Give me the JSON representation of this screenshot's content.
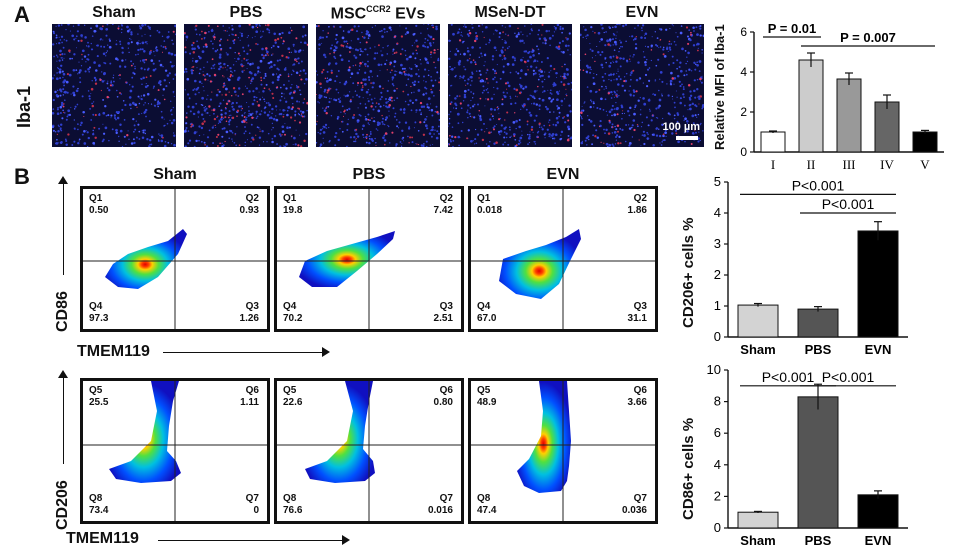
{
  "panel_a": {
    "letter": "A",
    "row_label": "Iba-1",
    "scale_bar": "100 µm",
    "groups": [
      {
        "base": "Sham",
        "sup": "",
        "rest": ""
      },
      {
        "base": "PBS",
        "sup": "",
        "rest": ""
      },
      {
        "base": "MSC",
        "sup": "CCR2",
        "rest": " EVs"
      },
      {
        "base": "MSeN-DT",
        "sup": "",
        "rest": ""
      },
      {
        "base": "EVN",
        "sup": "",
        "rest": ""
      }
    ]
  },
  "panel_b": {
    "letter": "B",
    "columns": [
      "Sham",
      "PBS",
      "EVN"
    ],
    "x_axis": "TMEM119",
    "row1_y_axis": "CD86",
    "row2_y_axis": "CD206",
    "row1": [
      {
        "q1": "Q1",
        "v1": "0.50",
        "q2": "Q2",
        "v2": "0.93",
        "q3": "Q3",
        "v3": "1.26",
        "q4": "Q4",
        "v4": "97.3"
      },
      {
        "q1": "Q1",
        "v1": "19.8",
        "q2": "Q2",
        "v2": "7.42",
        "q3": "Q3",
        "v3": "2.51",
        "q4": "Q4",
        "v4": "70.2"
      },
      {
        "q1": "Q1",
        "v1": "0.018",
        "q2": "Q2",
        "v2": "1.86",
        "q3": "Q3",
        "v3": "31.1",
        "q4": "Q4",
        "v4": "67.0"
      }
    ],
    "row2": [
      {
        "q1": "Q5",
        "v1": "25.5",
        "q2": "Q6",
        "v2": "1.11",
        "q3": "Q7",
        "v3": "0",
        "q4": "Q8",
        "v4": "73.4"
      },
      {
        "q1": "Q5",
        "v1": "22.6",
        "q2": "Q6",
        "v2": "0.80",
        "q3": "Q7",
        "v3": "0.016",
        "q4": "Q8",
        "v4": "76.6"
      },
      {
        "q1": "Q5",
        "v1": "48.9",
        "q2": "Q6",
        "v2": "3.66",
        "q3": "Q7",
        "v3": "0.036",
        "q4": "Q8",
        "v4": "47.4"
      }
    ]
  },
  "chart_data": [
    {
      "id": "iba1",
      "type": "bar",
      "ylabel": "Relative MFI of Iba-1",
      "categories": [
        "I",
        "II",
        "III",
        "IV",
        "V"
      ],
      "values": [
        1.0,
        4.6,
        3.65,
        2.5,
        1.0
      ],
      "errors": [
        0.05,
        0.35,
        0.3,
        0.35,
        0.08
      ],
      "colors": [
        "#ffffff",
        "#cccccc",
        "#999999",
        "#666666",
        "#000000"
      ],
      "ylim": [
        0,
        6
      ],
      "yticks": [
        "0",
        "2",
        "4",
        "6"
      ],
      "annotations": [
        {
          "text": "P = 0.01",
          "from": 0,
          "to": 1,
          "level": 5.75
        },
        {
          "text": "P = 0.007",
          "from": 1,
          "to": 4,
          "level": 5.3
        }
      ]
    },
    {
      "id": "cd206",
      "type": "bar",
      "ylabel": "CD206+ cells %",
      "categories": [
        "Sham",
        "PBS",
        "EVN"
      ],
      "values": [
        1.03,
        0.9,
        3.42
      ],
      "errors": [
        0.05,
        0.08,
        0.3
      ],
      "colors": [
        "#d3d3d3",
        "#555555",
        "#000000"
      ],
      "ylim": [
        0,
        5
      ],
      "yticks": [
        "0",
        "1",
        "2",
        "3",
        "4",
        "5"
      ],
      "annotations": [
        {
          "text": "P<0.001",
          "from": 0,
          "to": 2,
          "level": 4.6
        },
        {
          "text": "P<0.001",
          "from": 1,
          "to": 2,
          "level": 4.0
        }
      ]
    },
    {
      "id": "cd86",
      "type": "bar",
      "ylabel": "CD86+ cells %",
      "categories": [
        "Sham",
        "PBS",
        "EVN"
      ],
      "values": [
        1.0,
        8.3,
        2.1
      ],
      "errors": [
        0.05,
        0.8,
        0.25
      ],
      "colors": [
        "#d3d3d3",
        "#555555",
        "#000000"
      ],
      "ylim": [
        0,
        10
      ],
      "yticks": [
        "0",
        "2",
        "4",
        "6",
        "8",
        "10"
      ],
      "annotations": [
        {
          "text": "P<0.001",
          "from": 0,
          "to": 1,
          "level": 9.0
        },
        {
          "text": "P<0.001",
          "from": 1,
          "to": 2,
          "level": 9.0
        }
      ]
    }
  ]
}
